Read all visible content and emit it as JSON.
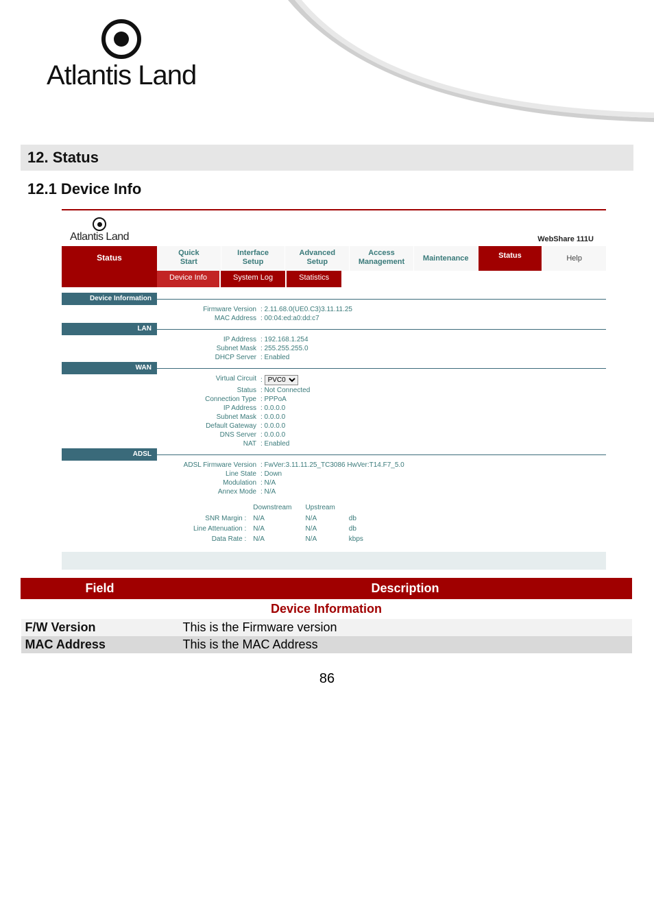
{
  "colors": {
    "accent": "#a00000",
    "teal": "#3a7a7a",
    "slate": "#3a6a7a",
    "light_row": "#f2f2f2",
    "dark_row": "#d9d9d9"
  },
  "top_logo": {
    "text": "Atlantis Land"
  },
  "headings": {
    "section": "12. Status",
    "sub": "12.1 Device Info"
  },
  "router": {
    "logo": "Atlantis Land",
    "model": "WebShare 111U",
    "mainnav": {
      "status": "Status",
      "quick_start": "Quick\nStart",
      "interface_setup": "Interface\nSetup",
      "advanced_setup": "Advanced\nSetup",
      "access_mgmt": "Access\nManagement",
      "maintenance": "Maintenance",
      "status2": "Status",
      "help": "Help"
    },
    "subnav": {
      "device_info": "Device Info",
      "system_log": "System Log",
      "statistics": "Statistics"
    },
    "sections": {
      "device_information": {
        "label": "Device Information",
        "fw_label": "Firmware Version",
        "fw_value": ": 2.11.68.0(UE0.C3)3.11.11.25",
        "mac_label": "MAC Address",
        "mac_value": ": 00:04:ed:a0:dd:c7"
      },
      "lan": {
        "label": "LAN",
        "ip_label": "IP Address",
        "ip_value": ": 192.168.1.254",
        "mask_label": "Subnet Mask",
        "mask_value": ": 255.255.255.0",
        "dhcp_label": "DHCP Server",
        "dhcp_value": ": Enabled"
      },
      "wan": {
        "label": "WAN",
        "vc_label": "Virtual Circuit",
        "vc_value": "PVC0",
        "status_label": "Status",
        "status_value": ": Not Connected",
        "ctype_label": "Connection Type",
        "ctype_value": ": PPPoA",
        "ip_label": "IP Address",
        "ip_value": ": 0.0.0.0",
        "mask_label": "Subnet Mask",
        "mask_value": ": 0.0.0.0",
        "gw_label": "Default Gateway",
        "gw_value": ": 0.0.0.0",
        "dns_label": "DNS Server",
        "dns_value": ": 0.0.0.0",
        "nat_label": "NAT",
        "nat_value": ": Enabled"
      },
      "adsl": {
        "label": "ADSL",
        "fw_label": "ADSL Firmware Version",
        "fw_value": ": FwVer:3.11.11.25_TC3086 HwVer:T14.F7_5.0",
        "line_label": "Line State",
        "line_value": ": Down",
        "mod_label": "Modulation",
        "mod_value": ": N/A",
        "annex_label": "Annex Mode",
        "annex_value": ": N/A",
        "cols": {
          "down": "Downstream",
          "up": "Upstream"
        },
        "rows": {
          "snr": {
            "label": "SNR Margin :",
            "down": "N/A",
            "up": "N/A",
            "unit": "db"
          },
          "att": {
            "label": "Line Attenuation :",
            "down": "N/A",
            "up": "N/A",
            "unit": "db"
          },
          "rate": {
            "label": "Data Rate :",
            "down": "N/A",
            "up": "N/A",
            "unit": "kbps"
          }
        }
      }
    }
  },
  "desc_table": {
    "field_hdr": "Field",
    "desc_hdr": "Description",
    "sub_hdr": "Device Information",
    "rows": [
      {
        "field": "F/W Version",
        "desc": "This is the Firmware version"
      },
      {
        "field": "MAC Address",
        "desc": "This is the MAC Address"
      }
    ]
  },
  "page_number": "86"
}
